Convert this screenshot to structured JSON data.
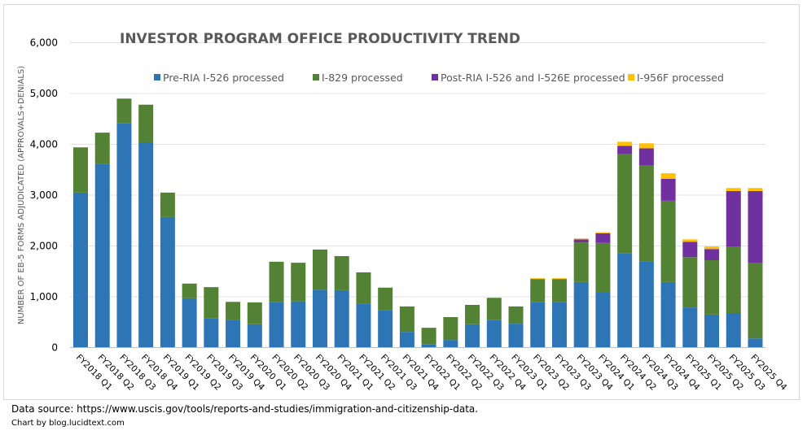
{
  "chart_data": {
    "type": "bar",
    "stacked": true,
    "title": "INVESTOR PROGRAM OFFICE PRODUCTIVITY TREND",
    "xlabel": "",
    "ylabel": "NUMBER OF EB-5 FORMS ADJUDICATED (APPROVALS+DENIALS)",
    "ylim": [
      0,
      6000
    ],
    "yticks": [
      0,
      1000,
      2000,
      3000,
      4000,
      5000,
      6000
    ],
    "ytick_labels": [
      "0",
      "1,000",
      "2,000",
      "3,000",
      "4,000",
      "5,000",
      "6,000"
    ],
    "grid": true,
    "legend_position": "top",
    "categories": [
      "FY2018 Q1",
      "FY2018 Q2",
      "FY2018 Q3",
      "FY2018 Q4",
      "FY2019 Q1",
      "FY2019 Q2",
      "FY2019 Q3",
      "FY2019 Q4",
      "FY2020 Q1",
      "FY2020 Q2",
      "FY2020 Q3",
      "FY2020 Q4",
      "FY2021 Q1",
      "FY2021 Q2",
      "FY2021 Q3",
      "FY2021 Q4",
      "FY2022 Q1",
      "FY2022 Q2",
      "FY2022 Q3",
      "FY2022 Q4",
      "FY2023 Q1",
      "FY2023 Q2",
      "FY2023 Q3",
      "FY2023 Q4",
      "FY2024 Q1",
      "FY2024 Q2",
      "FY2024 Q3",
      "FY2024 Q4",
      "FY2025 Q1",
      "FY2025 Q2",
      "FY2025 Q3",
      "FY2025 Q4"
    ],
    "series": [
      {
        "name": "Pre-RIA I-526 processed",
        "color": "#2e75b6",
        "values": [
          3050,
          3610,
          4420,
          4040,
          2570,
          970,
          580,
          550,
          460,
          900,
          910,
          1140,
          1130,
          870,
          730,
          310,
          60,
          150,
          460,
          540,
          470,
          900,
          890,
          1290,
          1080,
          1860,
          1690,
          1290,
          790,
          650,
          680,
          180
        ]
      },
      {
        "name": "I-829 processed",
        "color": "#548235",
        "values": [
          890,
          620,
          480,
          740,
          480,
          290,
          610,
          350,
          430,
          790,
          760,
          790,
          670,
          610,
          450,
          500,
          330,
          450,
          380,
          440,
          340,
          450,
          460,
          780,
          980,
          1950,
          1890,
          1600,
          990,
          1070,
          1300,
          1480
        ]
      },
      {
        "name": "Post-RIA I-526 and I-526E processed",
        "color": "#7030a0",
        "values": [
          0,
          0,
          0,
          0,
          0,
          0,
          0,
          0,
          0,
          0,
          0,
          0,
          0,
          0,
          0,
          0,
          0,
          0,
          0,
          0,
          0,
          0,
          0,
          60,
          190,
          160,
          340,
          430,
          300,
          220,
          1100,
          1420
        ]
      },
      {
        "name": "I-956F processed",
        "color": "#ffc000",
        "values": [
          0,
          0,
          0,
          0,
          0,
          0,
          0,
          0,
          0,
          0,
          0,
          0,
          0,
          0,
          0,
          0,
          0,
          0,
          0,
          0,
          0,
          15,
          15,
          20,
          20,
          80,
          100,
          110,
          50,
          50,
          60,
          60
        ]
      }
    ]
  },
  "footer": {
    "source": "Data source: https://www.uscis.gov/tools/reports-and-studies/immigration-and-citizenship-data.",
    "credit": "Chart by blog.lucidtext.com"
  }
}
